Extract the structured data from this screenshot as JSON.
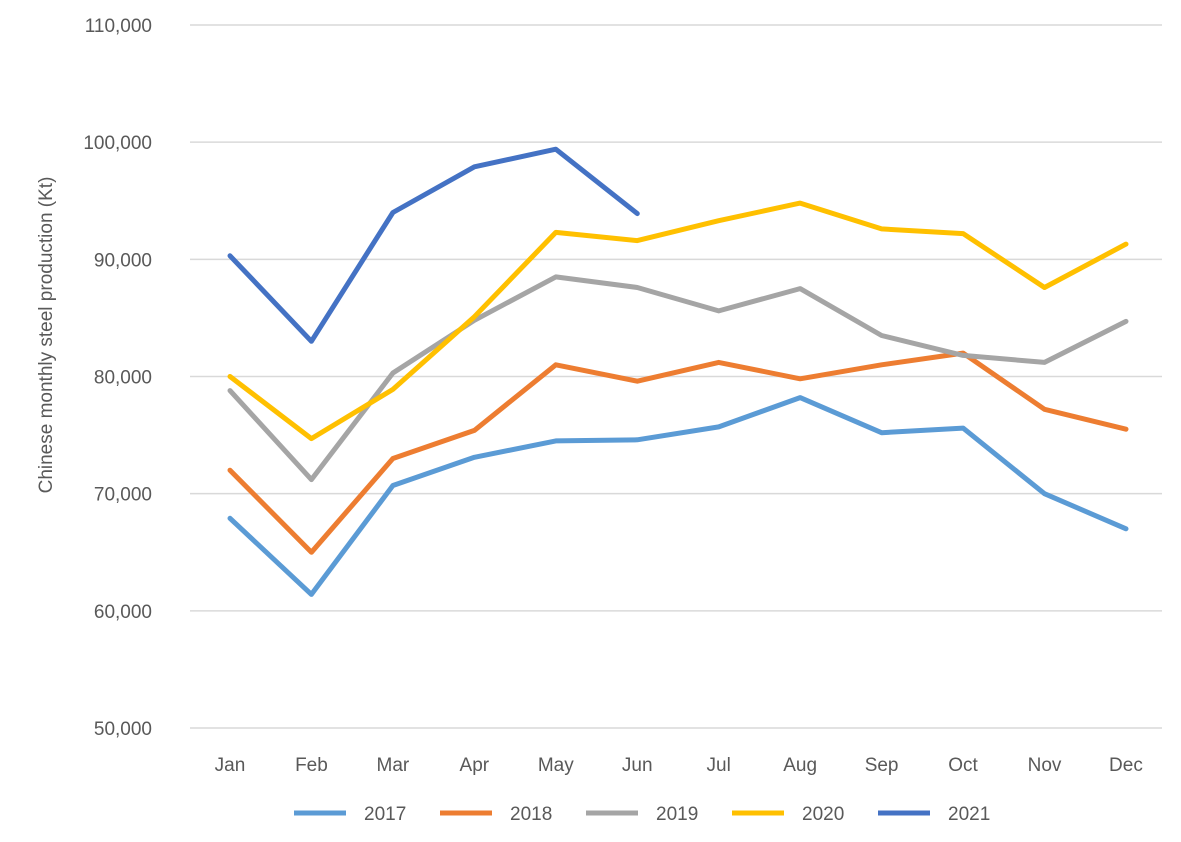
{
  "chart_data": {
    "type": "line",
    "title": "",
    "xlabel": "",
    "ylabel": "Chinese monthly steel production (Kt)",
    "categories": [
      "Jan",
      "Feb",
      "Mar",
      "Apr",
      "May",
      "Jun",
      "Jul",
      "Aug",
      "Sep",
      "Oct",
      "Nov",
      "Dec"
    ],
    "ylim": [
      50000,
      110000
    ],
    "yticks": [
      50000,
      60000,
      70000,
      80000,
      90000,
      100000,
      110000
    ],
    "ytick_labels": [
      "50,000",
      "60,000",
      "70,000",
      "80,000",
      "90,000",
      "100,000",
      "110,000"
    ],
    "grid": true,
    "legend_position": "bottom",
    "series": [
      {
        "name": "2017",
        "color": "#5b9bd5",
        "values": [
          67900,
          61400,
          70700,
          73100,
          74500,
          74600,
          75700,
          78200,
          75200,
          75600,
          70000,
          67000
        ]
      },
      {
        "name": "2018",
        "color": "#ed7d31",
        "values": [
          72000,
          65000,
          73000,
          75400,
          81000,
          79600,
          81200,
          79800,
          81000,
          82000,
          77200,
          75500
        ]
      },
      {
        "name": "2019",
        "color": "#a5a5a5",
        "values": [
          78800,
          71200,
          80300,
          84800,
          88500,
          87600,
          85600,
          87500,
          83500,
          81800,
          81200,
          84700
        ]
      },
      {
        "name": "2020",
        "color": "#ffc000",
        "values": [
          80000,
          74700,
          78900,
          85100,
          92300,
          91600,
          93300,
          94800,
          92600,
          92200,
          87600,
          91300
        ]
      },
      {
        "name": "2021",
        "color": "#4472c4",
        "values": [
          90300,
          83000,
          94000,
          97900,
          99400,
          93900,
          null,
          null,
          null,
          null,
          null,
          null
        ]
      }
    ]
  }
}
